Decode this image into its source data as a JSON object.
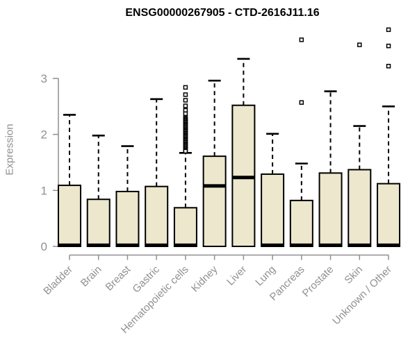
{
  "chart_data": {
    "type": "boxplot",
    "title": "ENSG00000267905 - CTD-2616J11.16",
    "ylabel": "Expression",
    "xlabel": "",
    "ylim": [
      0,
      3
    ],
    "yticks": [
      "0",
      "1",
      "2",
      "3"
    ],
    "grid": false,
    "legend": "none",
    "categories": [
      "Bladder",
      "Brain",
      "Breast",
      "Gastric",
      "Hematopoietic cells",
      "Kidney",
      "Liver",
      "Lung",
      "Pancreas",
      "Prostate",
      "Skin",
      "Unknown / Other"
    ],
    "boxes": [
      {
        "label": "Bladder",
        "whisker_low": 0,
        "q1": 0,
        "median": 0.02,
        "q3": 1.09,
        "whisker_high": 2.35,
        "outliers": []
      },
      {
        "label": "Brain",
        "whisker_low": 0,
        "q1": 0,
        "median": 0.02,
        "q3": 0.84,
        "whisker_high": 1.98,
        "outliers": []
      },
      {
        "label": "Breast",
        "whisker_low": 0,
        "q1": 0,
        "median": 0.02,
        "q3": 0.98,
        "whisker_high": 1.79,
        "outliers": []
      },
      {
        "label": "Gastric",
        "whisker_low": 0,
        "q1": 0,
        "median": 0.02,
        "q3": 1.07,
        "whisker_high": 2.63,
        "outliers": []
      },
      {
        "label": "Hematopoietic cells",
        "whisker_low": 0,
        "q1": 0,
        "median": 0.02,
        "q3": 0.69,
        "whisker_high": 1.67,
        "outliers": [
          2.84,
          2.71,
          2.61,
          2.51,
          2.43,
          2.37,
          2.3,
          2.28,
          2.26,
          2.24,
          2.22,
          2.2,
          2.18,
          2.16,
          2.14,
          2.12,
          2.1,
          2.08,
          2.06,
          2.04,
          2.02,
          2.0,
          1.98,
          1.96,
          1.94,
          1.92,
          1.9,
          1.88,
          1.86,
          1.84,
          1.82,
          1.8,
          1.78,
          1.76,
          1.74,
          1.72,
          1.7
        ]
      },
      {
        "label": "Kidney",
        "whisker_low": 0,
        "q1": 0,
        "median": 1.08,
        "q3": 1.61,
        "whisker_high": 2.96,
        "outliers": []
      },
      {
        "label": "Liver",
        "whisker_low": 0,
        "q1": 0,
        "median": 1.23,
        "q3": 2.52,
        "whisker_high": 3.35,
        "outliers": []
      },
      {
        "label": "Lung",
        "whisker_low": 0,
        "q1": 0,
        "median": 0.02,
        "q3": 1.29,
        "whisker_high": 2.01,
        "outliers": []
      },
      {
        "label": "Pancreas",
        "whisker_low": 0,
        "q1": 0,
        "median": 0.02,
        "q3": 0.82,
        "whisker_high": 1.48,
        "outliers": [
          2.57,
          3.69
        ]
      },
      {
        "label": "Prostate",
        "whisker_low": 0,
        "q1": 0,
        "median": 0.02,
        "q3": 1.31,
        "whisker_high": 2.77,
        "outliers": []
      },
      {
        "label": "Skin",
        "whisker_low": 0,
        "q1": 0,
        "median": 0.02,
        "q3": 1.37,
        "whisker_high": 2.15,
        "outliers": [
          3.6
        ]
      },
      {
        "label": "Unknown / Other",
        "whisker_low": 0,
        "q1": 0,
        "median": 0.02,
        "q3": 1.12,
        "whisker_high": 2.5,
        "outliers": [
          3.87,
          3.58,
          3.22
        ]
      }
    ],
    "colors": {
      "box_fill": "#ece7cd",
      "box_border": "#000000",
      "median": "#000000",
      "whisker": "#000000",
      "outlier_stroke": "#000000",
      "outlier_fill": "#ffffff",
      "axis_line": "#8f8f8f",
      "axis_text": "#909090",
      "title_text": "#000000",
      "background": "#ffffff"
    }
  }
}
